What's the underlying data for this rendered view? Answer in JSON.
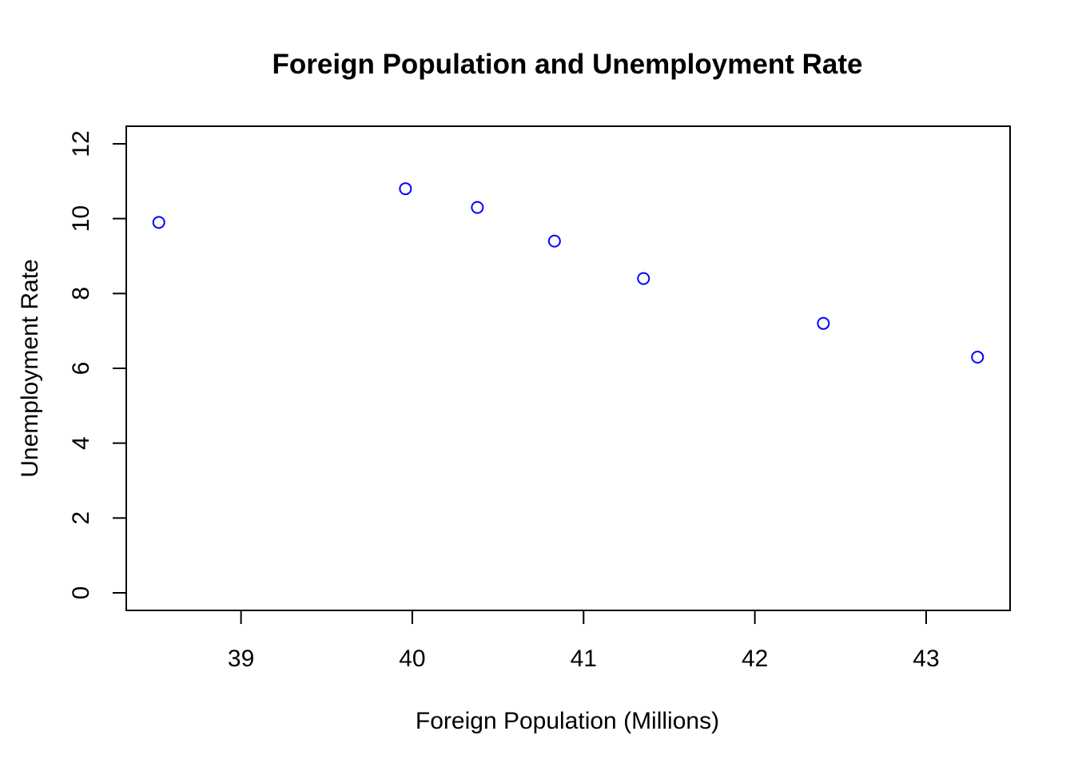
{
  "chart_data": {
    "type": "scatter",
    "title": "Foreign Population and Unemployment Rate",
    "xlabel": "Foreign Population (Millions)",
    "ylabel": "Unemployment Rate",
    "x": [
      38.52,
      39.96,
      40.38,
      40.83,
      41.35,
      42.4,
      43.3
    ],
    "y": [
      9.9,
      10.8,
      10.3,
      9.4,
      8.4,
      7.2,
      6.3
    ],
    "xlim": [
      38.33,
      43.49
    ],
    "ylim": [
      -0.47,
      12.47
    ],
    "xticks": [
      39,
      40,
      41,
      42,
      43
    ],
    "yticks": [
      0,
      2,
      4,
      6,
      8,
      10,
      12
    ],
    "point_color": "#0000ff",
    "marker": "open-circle",
    "grid": false,
    "legend": "none"
  }
}
